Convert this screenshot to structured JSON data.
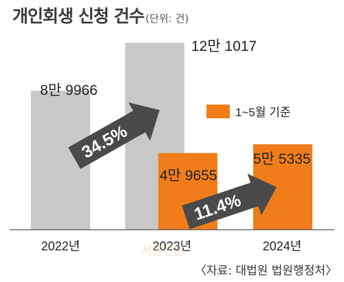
{
  "title": "개인회생 신청 건수",
  "unit": "(단위: 건)",
  "source": "〈자료: 대법원 법원행정처〉",
  "watermark": "서울신문",
  "colors": {
    "full_year": "#c8c8c8",
    "partial_year": "#f07d1a",
    "arrow": "#4a4a4a",
    "axis": "#555555",
    "text": "#222222"
  },
  "chart_data": {
    "type": "bar",
    "title": "개인회생 신청 건수",
    "categories": [
      "2022년",
      "2023년",
      "2024년"
    ],
    "series": [
      {
        "name": "",
        "values": [
          89966,
          121017,
          null
        ],
        "labels": [
          "8만 9966",
          "12만 1017",
          ""
        ]
      },
      {
        "name": "1~5월 기준",
        "values": [
          null,
          49655,
          55335
        ],
        "labels": [
          "",
          "4만 9655",
          "5만 5335"
        ]
      }
    ],
    "legend": {
      "label": "1~5월 기준",
      "position": "right"
    },
    "growth": [
      {
        "from": "2022년",
        "to": "2023년",
        "label": "34.5%"
      },
      {
        "from": "2023년",
        "to": "2024년",
        "label": "11.4%"
      }
    ],
    "ylim": [
      0,
      130000
    ],
    "xlabel": "",
    "ylabel": ""
  }
}
